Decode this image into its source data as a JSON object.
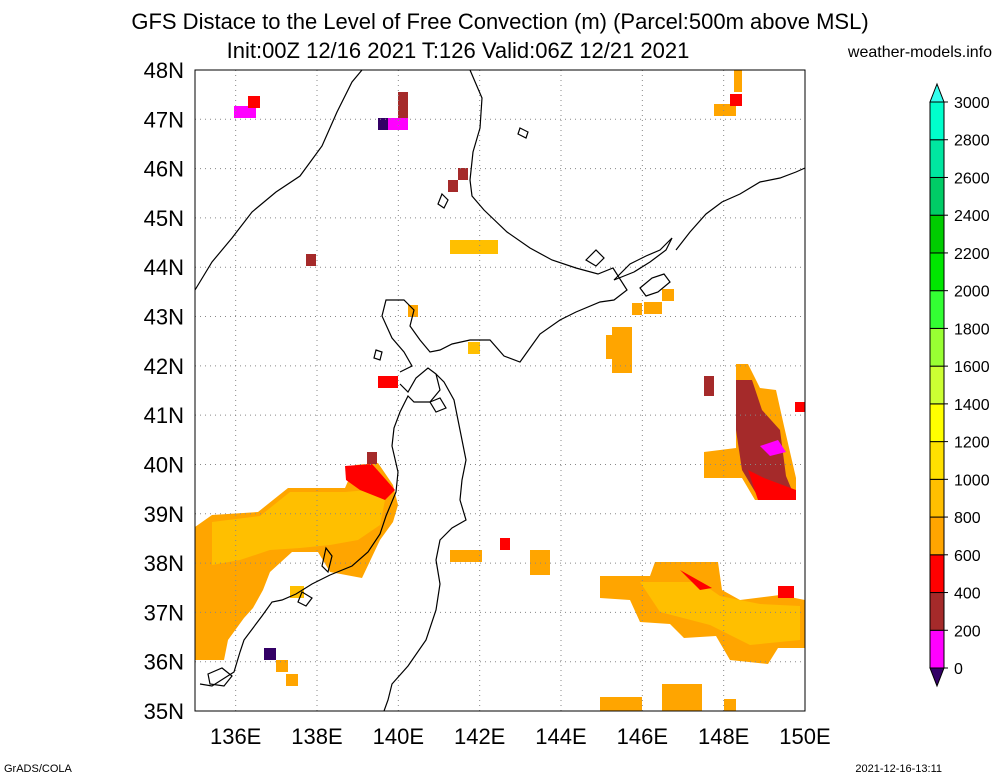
{
  "header": {
    "title_line1": "GFS Distace to the Level of Free Convection (m) (Parcel:500m above MSL)",
    "title_line2": "Init:00Z 12/16 2021 T:126 Valid:06Z 12/21 2021",
    "brand": "weather-models.info"
  },
  "footer": {
    "left": "GrADS/COLA",
    "right": "2021-12-16-13:11"
  },
  "map": {
    "lon_range": [
      135,
      150
    ],
    "lat_range": [
      35,
      48
    ],
    "lon_labels": [
      "136E",
      "138E",
      "140E",
      "142E",
      "144E",
      "146E",
      "148E",
      "150E"
    ],
    "lon_values": [
      136,
      138,
      140,
      142,
      144,
      146,
      148,
      150
    ],
    "lat_labels": [
      "35N",
      "36N",
      "37N",
      "38N",
      "39N",
      "40N",
      "41N",
      "42N",
      "43N",
      "44N",
      "45N",
      "46N",
      "47N",
      "48N"
    ],
    "lat_values": [
      35,
      36,
      37,
      38,
      39,
      40,
      41,
      42,
      43,
      44,
      45,
      46,
      47,
      48
    ],
    "grid": true,
    "coastline_color": "#000000"
  },
  "colorbar": {
    "labels": [
      "0",
      "200",
      "400",
      "600",
      "800",
      "1000",
      "1200",
      "1400",
      "1600",
      "1800",
      "2000",
      "2200",
      "2400",
      "2600",
      "2800",
      "3000"
    ],
    "colors": [
      "#ff00ff",
      "#a52a2a",
      "#ff0000",
      "#ffa500",
      "#ffbf00",
      "#ffe000",
      "#ffff00",
      "#ccff33",
      "#99ff33",
      "#33ff33",
      "#00e600",
      "#00cc00",
      "#00cc66",
      "#00e6a0",
      "#00ffcc"
    ],
    "under_color": "#330066",
    "over_color": "#33ffee"
  }
}
